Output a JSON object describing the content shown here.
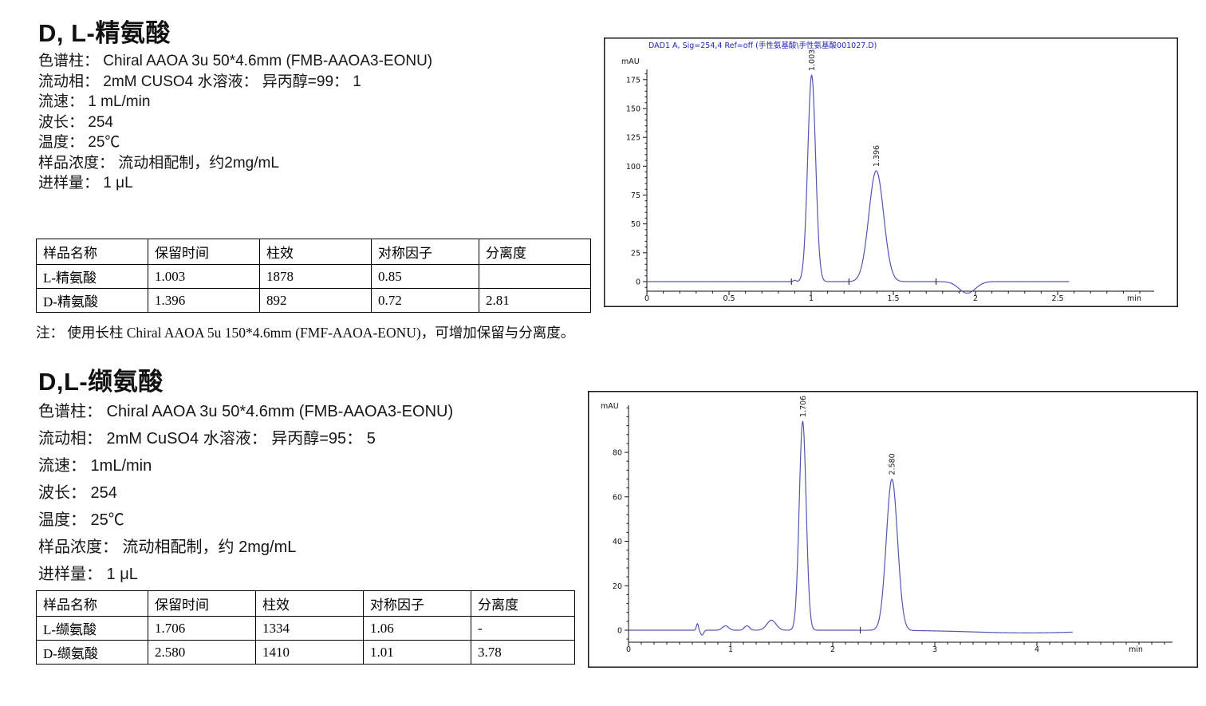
{
  "section1": {
    "title": "D, L-精氨酸",
    "info_lines": [
      "色谱柱： Chiral AAOA 3u 50*4.6mm (FMB-AAOA3-EONU)",
      "流动相： 2mM CUSO4 水溶液： 异丙醇=99： 1",
      "流速： 1 mL/min",
      "波长： 254",
      "温度： 25℃",
      "样品浓度： 流动相配制，约2mg/mL",
      "进样量： 1 μL"
    ],
    "table": {
      "headers": [
        "样品名称",
        "保留时间",
        "柱效",
        "对称因子",
        "分离度"
      ],
      "rows": [
        [
          "L-精氨酸",
          "1.003",
          "1878",
          "0.85",
          ""
        ],
        [
          "D-精氨酸",
          "1.396",
          "892",
          "0.72",
          "2.81"
        ]
      ]
    },
    "note": "注： 使用长柱 Chiral AAOA 5u 150*4.6mm (FMF-AAOA-EONU)，可增加保留与分离度。"
  },
  "section2": {
    "title": "D,L-缬氨酸",
    "info_lines": [
      "色谱柱： Chiral AAOA 3u 50*4.6mm (FMB-AAOA3-EONU)",
      "流动相： 2mM CuSO4 水溶液： 异丙醇=95： 5",
      "流速： 1mL/min",
      "波长： 254",
      "温度： 25℃",
      "样品浓度： 流动相配制，约 2mg/mL",
      "进样量： 1 μL"
    ],
    "table": {
      "headers": [
        "样品名称",
        "保留时间",
        "柱效",
        "对称因子",
        "分离度"
      ],
      "rows": [
        [
          "L-缬氨酸",
          "1.706",
          "1334",
          "1.06",
          "-"
        ],
        [
          "D-缬氨酸",
          "2.580",
          "1410",
          "1.01",
          "3.78"
        ]
      ]
    }
  },
  "chart_data": [
    {
      "type": "line",
      "title": "DAD1 A, Sig=254,4 Ref=off (手性氨基酸\\手性氨基酸001027.D)",
      "title_color": "#2222bb",
      "ylabel": "mAU",
      "xlabel": "min",
      "x_ticks": [
        0,
        0.5,
        1,
        1.5,
        2,
        2.5
      ],
      "y_ticks": [
        0,
        25,
        50,
        75,
        100,
        125,
        150,
        175
      ],
      "xlim": [
        0,
        3.1
      ],
      "ylim": [
        -12,
        185
      ],
      "trace_end": 2.57,
      "line_color": "#5555b0",
      "peaks": [
        {
          "rt": 1.003,
          "height": 179,
          "sigma": 0.024,
          "label": "1.003"
        },
        {
          "rt": 1.396,
          "height": 96,
          "sigma": 0.045,
          "label": "1.396"
        }
      ],
      "baseline_features": [
        {
          "rt": 0.9,
          "height": 1.2,
          "sigma": 0.008
        },
        {
          "rt": 1.95,
          "height": -10,
          "sigma": 0.05
        }
      ],
      "integration_marks": [
        0.88,
        1.23,
        1.76
      ]
    },
    {
      "type": "line",
      "title": "",
      "title_color": "#2222bb",
      "ylabel": "mAU",
      "xlabel": "min",
      "x_ticks": [
        0,
        1,
        2,
        3,
        4
      ],
      "y_ticks": [
        0,
        20,
        40,
        60,
        80
      ],
      "xlim": [
        0,
        5.3
      ],
      "ylim": [
        -8,
        101
      ],
      "trace_end": 4.35,
      "line_color": "#5555b0",
      "peaks": [
        {
          "rt": 1.706,
          "height": 94,
          "sigma": 0.034,
          "label": "1.706"
        },
        {
          "rt": 2.58,
          "height": 68,
          "sigma": 0.055,
          "label": "2.580"
        }
      ],
      "baseline_features": [
        {
          "rt": 0.675,
          "height": 3,
          "sigma": 0.01
        },
        {
          "rt": 0.72,
          "height": -2.2,
          "sigma": 0.015
        },
        {
          "rt": 0.95,
          "height": 2,
          "sigma": 0.03
        },
        {
          "rt": 1.16,
          "height": 2,
          "sigma": 0.025
        },
        {
          "rt": 1.4,
          "height": 4.5,
          "sigma": 0.045
        },
        {
          "rt": 3.9,
          "height": -1.2,
          "sigma": 0.55
        }
      ],
      "integration_marks": [
        2.27
      ]
    }
  ]
}
